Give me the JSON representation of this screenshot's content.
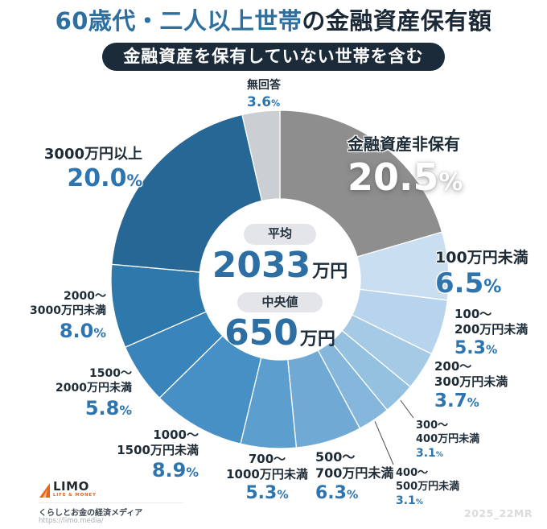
{
  "header": {
    "title_highlight": "60歳代・二人以上世帯",
    "title_rest": "の金融資産保有額",
    "badge": "金融資産を保有していない世帯を含む"
  },
  "chart_data": {
    "type": "pie",
    "donut": true,
    "inner_radius_ratio": 0.48,
    "start": "12-oclock",
    "direction": "clockwise",
    "unit": "%",
    "title": "60歳代・二人以上世帯の金融資産保有額",
    "subtitle": "金融資産を保有していない世帯を含む",
    "legend": false,
    "segments": [
      {
        "id": "no-assets",
        "label": "金融資産非保有",
        "label_lines": [
          "金融資産非保有"
        ],
        "value": 20.5,
        "display": "20.5%",
        "color": "#8e8e8e"
      },
      {
        "id": "under-100",
        "label": "100万円未満",
        "label_lines": [
          "100万円未満"
        ],
        "value": 6.5,
        "display": "6.5%",
        "color": "#c9def1"
      },
      {
        "id": "100-200",
        "label": "100〜200万円未満",
        "label_lines": [
          "100〜",
          "200万円未満"
        ],
        "value": 5.3,
        "display": "5.3%",
        "color": "#b7d4ec"
      },
      {
        "id": "200-300",
        "label": "200〜300万円未満",
        "label_lines": [
          "200〜",
          "300万円未満"
        ],
        "value": 3.7,
        "display": "3.7%",
        "color": "#a5cae6"
      },
      {
        "id": "300-400",
        "label": "300〜400万円未満",
        "label_lines": [
          "300〜",
          "400万円未満"
        ],
        "value": 3.1,
        "display": "3.1%",
        "color": "#95c1e1"
      },
      {
        "id": "400-500",
        "label": "400〜500万円未満",
        "label_lines": [
          "400〜",
          "500万円未満"
        ],
        "value": 3.1,
        "display": "3.1%",
        "color": "#84b7db"
      },
      {
        "id": "500-700",
        "label": "500〜700万円未満",
        "label_lines": [
          "500〜",
          "700万円未満"
        ],
        "value": 6.3,
        "display": "6.3%",
        "color": "#70aad4"
      },
      {
        "id": "700-1000",
        "label": "700〜1000万円未満",
        "label_lines": [
          "700〜",
          "1000万円未満"
        ],
        "value": 5.3,
        "display": "5.3%",
        "color": "#5c9ecd"
      },
      {
        "id": "1000-1500",
        "label": "1000〜1500万円未満",
        "label_lines": [
          "1000〜",
          "1500万円未満"
        ],
        "value": 8.9,
        "display": "8.9%",
        "color": "#4690c5"
      },
      {
        "id": "1500-2000",
        "label": "1500〜2000万円未満",
        "label_lines": [
          "1500〜",
          "2000万円未満"
        ],
        "value": 5.8,
        "display": "5.8%",
        "color": "#3884bb"
      },
      {
        "id": "2000-3000",
        "label": "2000〜3000万円未満",
        "label_lines": [
          "2000〜",
          "3000万円未満"
        ],
        "value": 8.0,
        "display": "8.0%",
        "color": "#2f78ab"
      },
      {
        "id": "3000-plus",
        "label": "3000万円以上",
        "label_lines": [
          "3000万円以上"
        ],
        "value": 20.0,
        "display": "20.0%",
        "color": "#276795"
      },
      {
        "id": "no-answer",
        "label": "無回答",
        "label_lines": [
          "無回答"
        ],
        "value": 3.6,
        "display": "3.6%",
        "color": "#cbced2"
      }
    ],
    "center_stats": {
      "average_label": "平均",
      "average_value": "2033",
      "average_unit": "万円",
      "median_label": "中央値",
      "median_value": "650",
      "median_unit": "万円"
    }
  },
  "footer": {
    "logo_text": "LIMO",
    "logo_sub": "LIFE & MONEY",
    "tagline": "くらしとお金の経済メディア",
    "url": "https://limo.media/",
    "watermark": "2025_22MR"
  }
}
